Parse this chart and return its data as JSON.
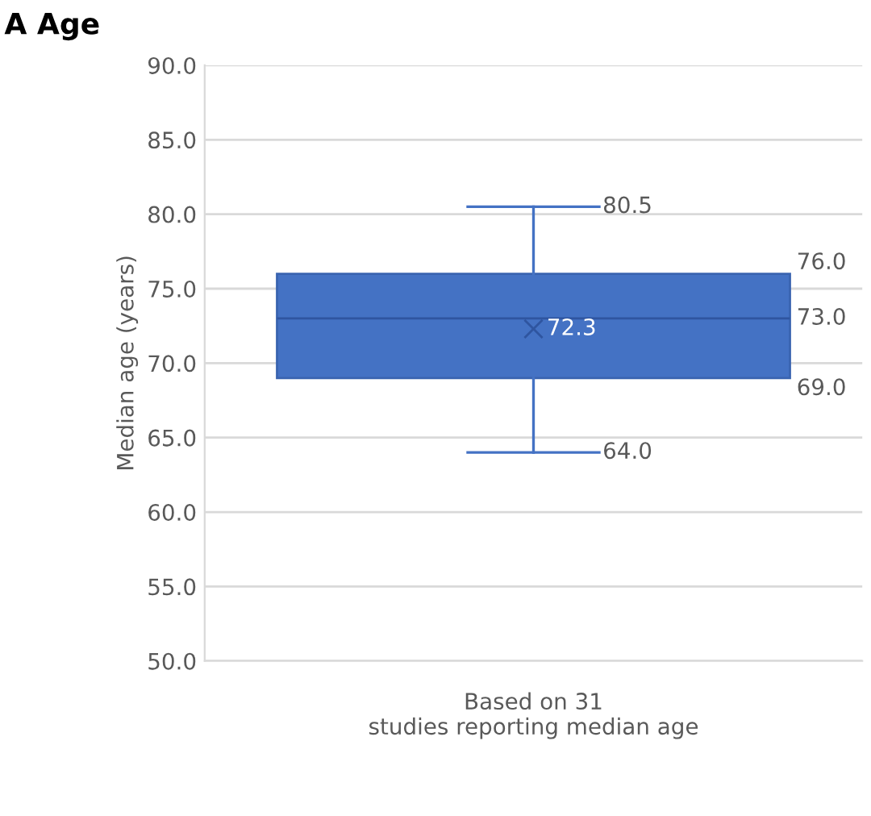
{
  "chart_data": {
    "type": "box",
    "title": "A Age",
    "ylabel": "Median age (years)",
    "categories": [
      "Based on 31\nstudies reporting median age"
    ],
    "boxes": [
      {
        "low": 64.0,
        "q1": 69.0,
        "median": 73.0,
        "q3": 76.0,
        "high": 80.5,
        "mean": 72.3
      }
    ],
    "color": "#4472c4",
    "ylim": [
      50,
      90
    ],
    "yticks": [
      {
        "value": 50,
        "label": "50.0"
      },
      {
        "value": 55,
        "label": "55.0"
      },
      {
        "value": 60,
        "label": "60.0"
      },
      {
        "value": 65,
        "label": "65.0"
      },
      {
        "value": 70,
        "label": "70.0"
      },
      {
        "value": 75,
        "label": "75.0"
      },
      {
        "value": 80,
        "label": "80.0"
      },
      {
        "value": 85,
        "label": "85.0"
      },
      {
        "value": 90,
        "label": "90.0"
      }
    ],
    "value_labels": [
      {
        "high": "80.5",
        "q3": "76.0",
        "median": "73.0",
        "mean": "72.3",
        "q1": "69.0",
        "low": "64.0"
      }
    ],
    "grid": "y"
  }
}
